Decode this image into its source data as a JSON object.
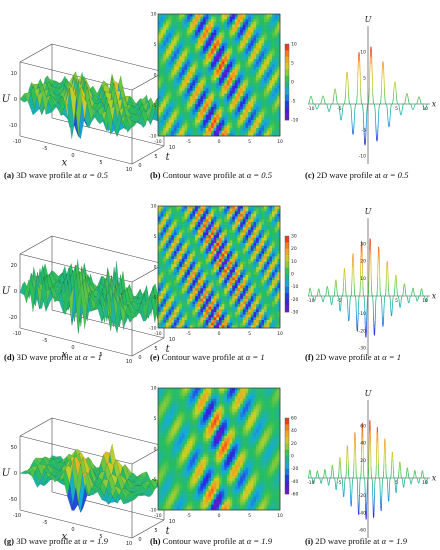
{
  "rows": [
    {
      "alpha": "0.5",
      "panels": [
        {
          "letter": "(a)",
          "text": "3D wave profile at",
          "alpha_label": "α = 0.5",
          "axis_labels": {
            "u": "U",
            "x": "x",
            "t": "t"
          },
          "ticks": {
            "u": [
              "10",
              "0",
              "-10"
            ],
            "x": [
              "-10",
              "-5",
              "0",
              "5",
              "10"
            ],
            "t": [
              "0",
              "5",
              "10"
            ]
          }
        },
        {
          "letter": "(b)",
          "text": "Contour wave profile at",
          "alpha_label": "α = 0.5",
          "ticks": {
            "x": [
              "-10",
              "-5",
              "0",
              "5",
              "10"
            ],
            "y": [
              "10",
              "5",
              "0",
              "-5",
              "-10"
            ]
          }
        },
        {
          "letter": "(c)",
          "text": "2D wave profile at",
          "alpha_label": "α = 0.5",
          "axis_labels": {
            "u": "U",
            "x": "x"
          },
          "ticks": {
            "x": [
              "-10",
              "-5",
              "5",
              "10"
            ],
            "u": [
              "10",
              "5",
              "-5",
              "-10"
            ]
          }
        }
      ]
    },
    {
      "alpha": "1",
      "panels": [
        {
          "letter": "(d)",
          "text": "3D wave profile at",
          "alpha_label": "α = 1",
          "axis_labels": {
            "u": "U",
            "x": "x",
            "t": "t"
          },
          "ticks": {
            "u": [
              "20",
              "0",
              "-20"
            ],
            "x": [
              "-10",
              "-5",
              "0",
              "5",
              "10"
            ],
            "t": [
              "0",
              "5",
              "10"
            ]
          }
        },
        {
          "letter": "(e)",
          "text": "Contour wave profile at",
          "alpha_label": "α = 1",
          "ticks": {
            "x": [
              "-10",
              "-5",
              "0",
              "5",
              "10"
            ],
            "y": [
              "10",
              "5",
              "0",
              "-5",
              "-10"
            ]
          }
        },
        {
          "letter": "(f)",
          "text": "2D wave profile at",
          "alpha_label": "α = 1",
          "axis_labels": {
            "u": "U",
            "x": "x"
          },
          "ticks": {
            "x": [
              "-10",
              "-5",
              "5",
              "10"
            ],
            "u": [
              "30",
              "20",
              "10",
              "-10",
              "-20",
              "-30"
            ]
          }
        }
      ]
    },
    {
      "alpha": "1.9",
      "panels": [
        {
          "letter": "(g)",
          "text": "3D wave profile at",
          "alpha_label": "α = 1.9",
          "axis_labels": {
            "u": "U",
            "x": "x",
            "t": "t"
          },
          "ticks": {
            "u": [
              "50",
              "0",
              "-50"
            ],
            "x": [
              "-10",
              "-5",
              "0",
              "5",
              "10"
            ],
            "t": [
              "0",
              "5",
              "10"
            ]
          }
        },
        {
          "letter": "(h)",
          "text": "Contour wave profile at",
          "alpha_label": "α = 1.9",
          "ticks": {
            "x": [
              "-10",
              "-5",
              "0",
              "5",
              "10"
            ],
            "y": [
              "10",
              "5",
              "0",
              "-5",
              "-10"
            ]
          }
        },
        {
          "letter": "(i)",
          "text": "2D wave profile at",
          "alpha_label": "α = 1.9",
          "axis_labels": {
            "u": "U",
            "x": "x"
          },
          "ticks": {
            "x": [
              "-10",
              "-5",
              "5",
              "10"
            ],
            "u": [
              "60",
              "40",
              "20",
              "-20",
              "-40",
              "-60"
            ]
          }
        }
      ]
    }
  ],
  "colorbars": [
    [
      "10",
      "5",
      "0",
      "-5",
      "-10"
    ],
    [
      "30",
      "20",
      "10",
      "0",
      "-10",
      "-20",
      "-30"
    ],
    [
      "60",
      "40",
      "20",
      "0",
      "-20",
      "-40",
      "-60"
    ]
  ]
}
